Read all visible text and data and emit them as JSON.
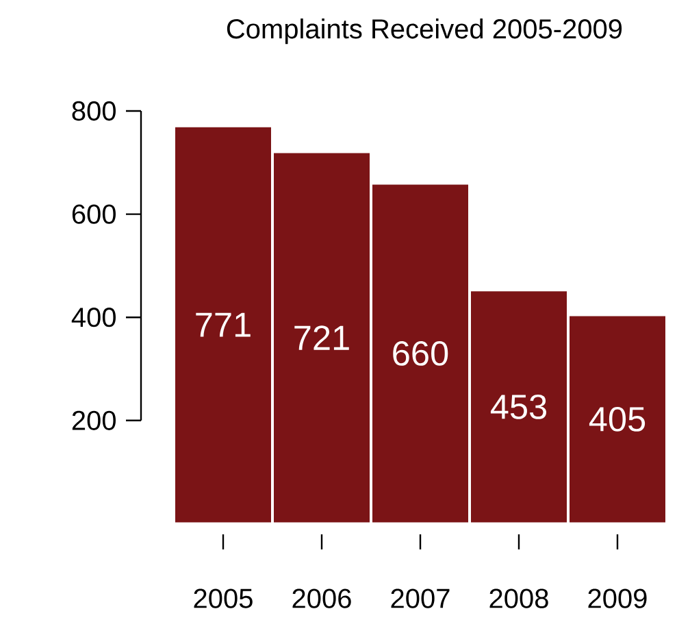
{
  "chart_data": {
    "type": "bar",
    "title": "Complaints Received 2005-2009",
    "categories": [
      "2005",
      "2006",
      "2007",
      "2008",
      "2009"
    ],
    "values": [
      771,
      721,
      660,
      453,
      405
    ],
    "color": "#7b1416",
    "ylim": [
      0,
      800
    ],
    "yticks": [
      200,
      400,
      600,
      800
    ],
    "data_labels": true
  }
}
